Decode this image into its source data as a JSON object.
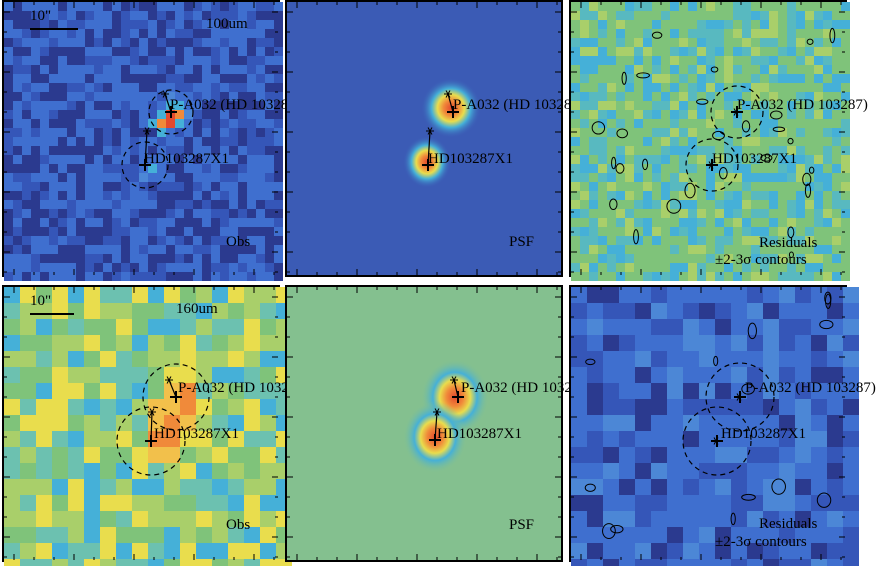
{
  "figure": {
    "rows": [
      {
        "band_label": "100um",
        "scale_label": "10\"",
        "panels": [
          {
            "kind": "obs",
            "caption": "Obs",
            "palette": "blue"
          },
          {
            "kind": "psf",
            "caption": "PSF",
            "palette": "psf_blue"
          },
          {
            "kind": "residual",
            "caption_line1": "Residuals",
            "caption_line2": "±2-3σ contours",
            "palette": "green"
          }
        ]
      },
      {
        "band_label": "160um",
        "scale_label": "10\"",
        "panels": [
          {
            "kind": "obs",
            "caption": "Obs",
            "palette": "warm"
          },
          {
            "kind": "psf",
            "caption": "PSF",
            "palette": "psf_green"
          },
          {
            "kind": "residual",
            "caption_line1": "Residuals",
            "caption_line2": "±2-3σ contours",
            "palette": "blue"
          }
        ]
      }
    ],
    "sources": [
      {
        "name": "P-A032 (HD 103287)"
      },
      {
        "name": "HD103287X1"
      }
    ],
    "colors": {
      "deep_blue": "#2b3a8f",
      "blue": "#3f6fcf",
      "cyan": "#45b0d8",
      "green": "#7fc37a",
      "yellow": "#e9dd4d",
      "orange": "#f08a3a",
      "red": "#e44a2e",
      "purple": "#5a2a86"
    }
  }
}
